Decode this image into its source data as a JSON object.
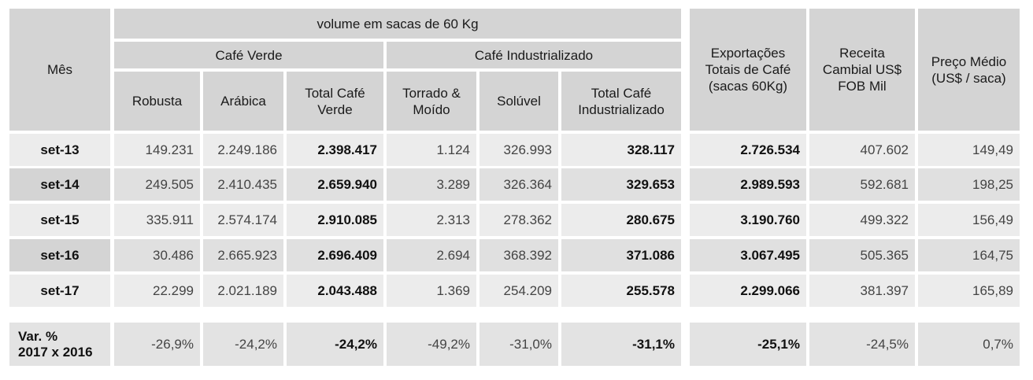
{
  "table": {
    "header": {
      "month": "Mês",
      "volume_group": "volume em sacas de 60 Kg",
      "green_group": "Café Verde",
      "industrial_group": "Café Industrializado",
      "col_robusta": "Robusta",
      "col_arabica": "Arábica",
      "col_total_green": "Total Café Verde",
      "col_roasted": "Torrado & Moído",
      "col_soluble": "Solúvel",
      "col_total_industrial": "Total Café Industrializado",
      "col_exports": "Exportações Totais de Café (sacas 60Kg)",
      "col_revenue": "Receita Cambial US$ FOB Mil",
      "col_price": "Preço Médio (US$ / saca)"
    },
    "rows": [
      {
        "month": "set-13",
        "robusta": "149.231",
        "arabica": "2.249.186",
        "total_green": "2.398.417",
        "roasted": "1.124",
        "soluble": "326.993",
        "total_industrial": "328.117",
        "exports": "2.726.534",
        "revenue": "407.602",
        "price": "149,49"
      },
      {
        "month": "set-14",
        "robusta": "249.505",
        "arabica": "2.410.435",
        "total_green": "2.659.940",
        "roasted": "3.289",
        "soluble": "326.364",
        "total_industrial": "329.653",
        "exports": "2.989.593",
        "revenue": "592.681",
        "price": "198,25"
      },
      {
        "month": "set-15",
        "robusta": "335.911",
        "arabica": "2.574.174",
        "total_green": "2.910.085",
        "roasted": "2.313",
        "soluble": "278.362",
        "total_industrial": "280.675",
        "exports": "3.190.760",
        "revenue": "499.322",
        "price": "156,49"
      },
      {
        "month": "set-16",
        "robusta": "30.486",
        "arabica": "2.665.923",
        "total_green": "2.696.409",
        "roasted": "2.694",
        "soluble": "368.392",
        "total_industrial": "371.086",
        "exports": "3.067.495",
        "revenue": "505.365",
        "price": "164,75"
      },
      {
        "month": "set-17",
        "robusta": "22.299",
        "arabica": "2.021.189",
        "total_green": "2.043.488",
        "roasted": "1.369",
        "soluble": "254.209",
        "total_industrial": "255.578",
        "exports": "2.299.066",
        "revenue": "381.397",
        "price": "165,89"
      }
    ],
    "variation": {
      "label_line1": "Var. %",
      "label_line2": "2017 x 2016",
      "robusta": "-26,9%",
      "arabica": "-24,2%",
      "total_green": "-24,2%",
      "roasted": "-49,2%",
      "soluble": "-31,0%",
      "total_industrial": "-31,1%",
      "exports": "-25,1%",
      "revenue": "-24,5%",
      "price": "0,7%"
    }
  }
}
